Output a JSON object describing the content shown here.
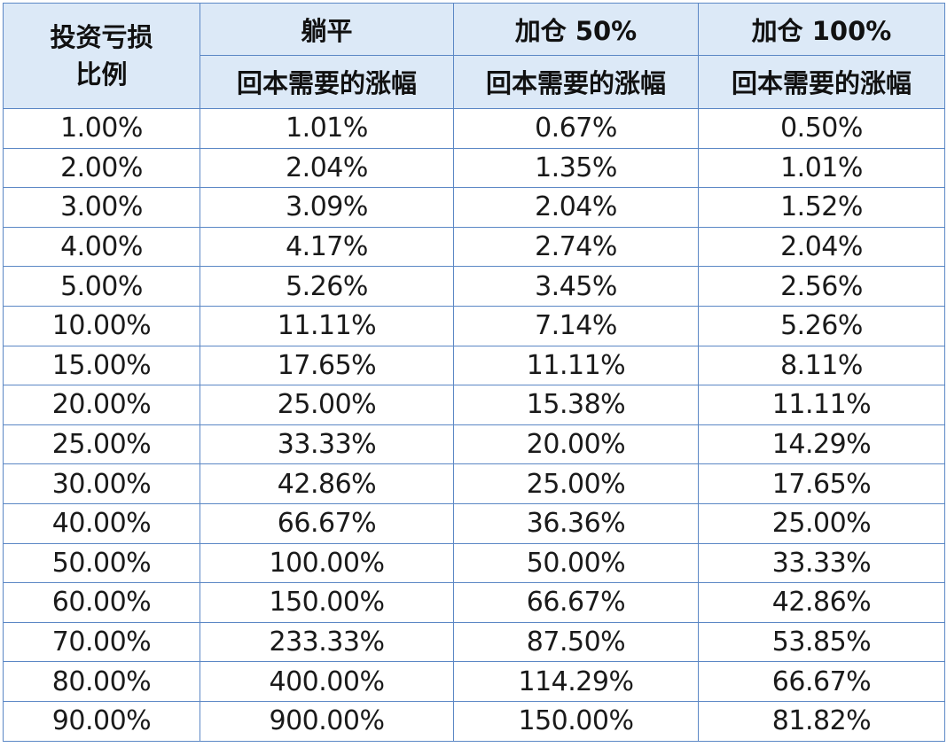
{
  "table": {
    "header": {
      "corner_line1": "投资亏损",
      "corner_line2": "比例",
      "scenarios": [
        "躺平",
        "加仓 50%",
        "加仓 100%"
      ],
      "sub_label": "回本需要的涨幅"
    },
    "rows": [
      [
        "1.00%",
        "1.01%",
        "0.67%",
        "0.50%"
      ],
      [
        "2.00%",
        "2.04%",
        "1.35%",
        "1.01%"
      ],
      [
        "3.00%",
        "3.09%",
        "2.04%",
        "1.52%"
      ],
      [
        "4.00%",
        "4.17%",
        "2.74%",
        "2.04%"
      ],
      [
        "5.00%",
        "5.26%",
        "3.45%",
        "2.56%"
      ],
      [
        "10.00%",
        "11.11%",
        "7.14%",
        "5.26%"
      ],
      [
        "15.00%",
        "17.65%",
        "11.11%",
        "8.11%"
      ],
      [
        "20.00%",
        "25.00%",
        "15.38%",
        "11.11%"
      ],
      [
        "25.00%",
        "33.33%",
        "20.00%",
        "14.29%"
      ],
      [
        "30.00%",
        "42.86%",
        "25.00%",
        "17.65%"
      ],
      [
        "40.00%",
        "66.67%",
        "36.36%",
        "25.00%"
      ],
      [
        "50.00%",
        "100.00%",
        "50.00%",
        "33.33%"
      ],
      [
        "60.00%",
        "150.00%",
        "66.67%",
        "42.86%"
      ],
      [
        "70.00%",
        "233.33%",
        "87.50%",
        "53.85%"
      ],
      [
        "80.00%",
        "400.00%",
        "114.29%",
        "66.67%"
      ],
      [
        "90.00%",
        "900.00%",
        "150.00%",
        "81.82%"
      ]
    ]
  },
  "colors": {
    "header_background": "#dce9f7",
    "border": "#5b87c5",
    "text": "#1a1a1a"
  }
}
